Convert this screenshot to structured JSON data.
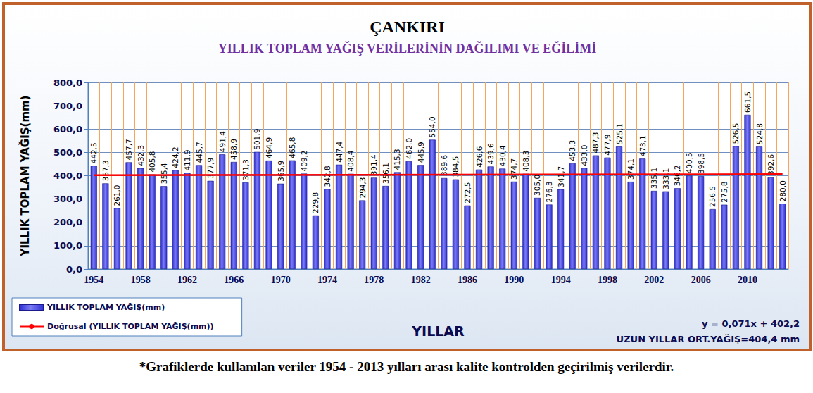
{
  "chart_data": {
    "type": "bar",
    "title": "ÇANKIRI",
    "subtitle": "YILLIK TOPLAM YAĞIŞ VERİLERİNİN DAĞILIMI VE EĞİLİMİ",
    "x_label": "YILLAR",
    "y_label": "YILLIK TOPLAM YAĞIŞ(mm)",
    "annotations": [
      "y = 0,071x + 402,2",
      "UZUN YILLAR ORT.YAĞIŞ=404,4 mm"
    ],
    "footnote": "*Grafiklerde kullanılan veriler 1954 - 2013 yılları arası kalite kontrolden geçirilmiş verilerdir.",
    "categories": [
      "1954",
      null,
      null,
      null,
      "1958",
      null,
      null,
      null,
      "1962",
      null,
      null,
      null,
      "1966",
      null,
      null,
      null,
      "1970",
      null,
      null,
      null,
      "1974",
      null,
      null,
      null,
      "1978",
      null,
      null,
      null,
      "1982",
      null,
      null,
      null,
      "1986",
      null,
      null,
      null,
      "1990",
      null,
      null,
      null,
      "1994",
      null,
      null,
      null,
      "1998",
      null,
      null,
      null,
      "2002",
      null,
      null,
      null,
      "2006",
      null,
      null,
      null,
      "2010",
      null,
      null,
      null
    ],
    "series": [
      {
        "name": "YILLIK TOPLAM YAĞIŞ(mm)",
        "type": "bar",
        "color": "#2f2fd6",
        "data_labels": true,
        "values": [
          442.5,
          367.3,
          261.0,
          457.7,
          432.3,
          405.8,
          355.4,
          424.2,
          411.9,
          445.7,
          377.9,
          491.4,
          458.9,
          371.3,
          501.9,
          464.9,
          365.9,
          465.8,
          409.2,
          229.8,
          342.8,
          447.4,
          408.4,
          294.3,
          391.4,
          356.1,
          415.3,
          462.0,
          445.9,
          554.0,
          389.6,
          384.5,
          272.5,
          426.6,
          439.6,
          430.4,
          374.7,
          408.3,
          305.0,
          276.3,
          341.7,
          453.3,
          433.0,
          487.3,
          477.9,
          525.1,
          374.1,
          473.1,
          335.1,
          333.1,
          346.2,
          400.5,
          398.5,
          256.5,
          275.8,
          526.5,
          661.5,
          524.8,
          392.6,
          280.0
        ],
        "value_labels": [
          "442,5",
          "367,3",
          "261,0",
          "457,7",
          "432,3",
          "405,8",
          "355,4",
          "424,2",
          "411,9",
          "445,7",
          "377,9",
          "491,4",
          "458,9",
          "371,3",
          "501,9",
          "464,9",
          "365,9",
          "465,8",
          "409,2",
          "229,8",
          "342,8",
          "447,4",
          "408,4",
          "294,3",
          "391,4",
          "356,1",
          "415,3",
          "462,0",
          "445,9",
          "554,0",
          "389,6",
          "384,5",
          "272,5",
          "426,6",
          "439,6",
          "430,4",
          "374,7",
          "408,3",
          "305,0",
          "276,3",
          "341,7",
          "453,3",
          "433,0",
          "487,3",
          "477,9",
          "525,1",
          "374,1",
          "473,1",
          "335,1",
          "333,1",
          "346,2",
          "400,5",
          "398,5",
          "256,5",
          "275,8",
          "526,5",
          "661,5",
          "524,8",
          "392,6",
          "280,0"
        ]
      },
      {
        "name": "Doğrusal (YILLIK TOPLAM YAĞIŞ(mm))",
        "type": "line",
        "color": "#ff0000",
        "line_style": "solid",
        "values": [
          402.3,
          null,
          null,
          null,
          null,
          null,
          null,
          null,
          null,
          null,
          null,
          null,
          null,
          null,
          null,
          null,
          null,
          null,
          null,
          null,
          null,
          null,
          null,
          null,
          null,
          null,
          null,
          null,
          null,
          null,
          null,
          null,
          null,
          null,
          null,
          null,
          null,
          null,
          null,
          null,
          null,
          null,
          null,
          null,
          null,
          null,
          null,
          null,
          null,
          null,
          null,
          null,
          null,
          null,
          null,
          null,
          null,
          null,
          null,
          406.5
        ]
      }
    ],
    "ylim": [
      0,
      800
    ],
    "yticks": [
      {
        "value": 0,
        "label": "0,0"
      },
      {
        "value": 100,
        "label": "100,0"
      },
      {
        "value": 200,
        "label": "200,0"
      },
      {
        "value": 300,
        "label": "300,0"
      },
      {
        "value": 400,
        "label": "400,0"
      },
      {
        "value": 500,
        "label": "500,0"
      },
      {
        "value": 600,
        "label": "600,0"
      },
      {
        "value": 700,
        "label": "700,0"
      },
      {
        "value": 800,
        "label": "800,0"
      }
    ],
    "grid": true,
    "legend": "lower left"
  }
}
